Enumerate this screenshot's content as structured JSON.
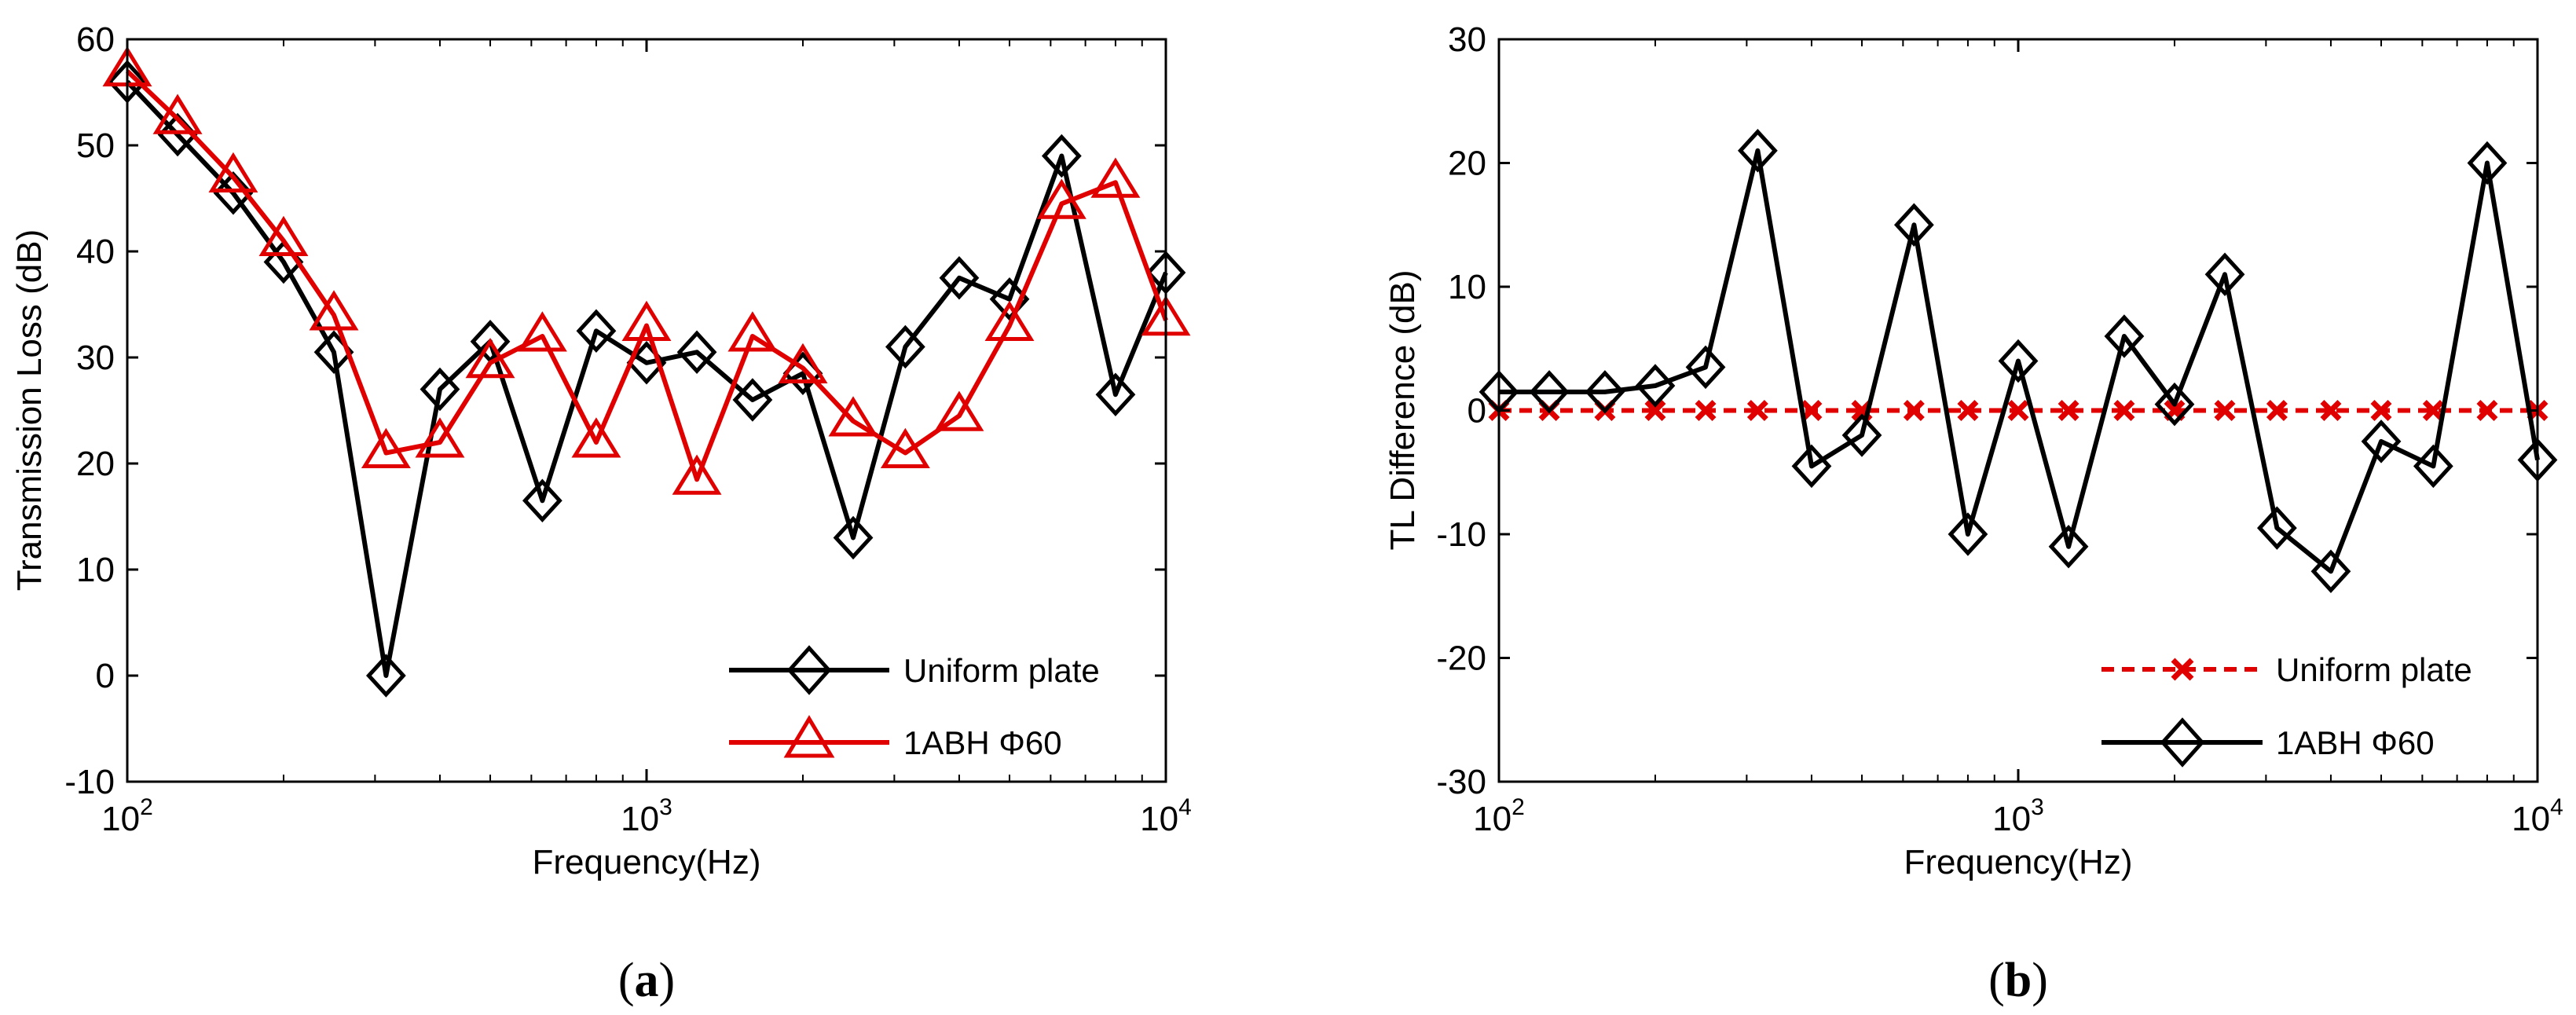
{
  "chart_data": [
    {
      "type": "line",
      "panel": "a",
      "xscale": "log",
      "xlim": [
        100,
        10000
      ],
      "ylim": [
        -10,
        60
      ],
      "xlabel": "Frequency(Hz)",
      "ylabel": "Transmission Loss (dB)",
      "y_ticks": [
        "60",
        "50",
        "40",
        "30",
        "20",
        "10",
        "0",
        "-10"
      ],
      "x_ticks": [
        {
          "base": "10",
          "exp": "2"
        },
        {
          "base": "10",
          "exp": "3"
        },
        {
          "base": "10",
          "exp": "4"
        }
      ],
      "legend_position": "bottom-right",
      "x": [
        100,
        125,
        160,
        200,
        250,
        315,
        400,
        500,
        630,
        800,
        1000,
        1250,
        1600,
        2000,
        2500,
        3150,
        4000,
        5000,
        6300,
        8000,
        10000
      ],
      "series": [
        {
          "name": "Uniform plate",
          "color": "#000000",
          "marker": "diamond",
          "line": "solid",
          "values": [
            56,
            51,
            45.5,
            39,
            30.5,
            0,
            27,
            31.5,
            16.5,
            32.5,
            29.5,
            30.5,
            26,
            28.5,
            13,
            31,
            37.5,
            35.5,
            49,
            26.5,
            38
          ]
        },
        {
          "name": "1ABH Φ60",
          "color": "#e00000",
          "marker": "triangle",
          "line": "solid",
          "values": [
            57,
            52.5,
            47,
            41,
            34,
            21,
            22,
            29.5,
            32,
            22,
            33,
            18.5,
            32,
            29,
            24,
            21,
            24.5,
            33,
            44.5,
            46.5,
            33.5
          ]
        }
      ]
    },
    {
      "type": "line",
      "panel": "b",
      "xscale": "log",
      "xlim": [
        100,
        10000
      ],
      "ylim": [
        -30,
        30
      ],
      "xlabel": "Frequency(Hz)",
      "ylabel": "TL Difference (dB)",
      "y_ticks": [
        "30",
        "20",
        "10",
        "0",
        "-10",
        "-20",
        "-30"
      ],
      "x_ticks": [
        {
          "base": "10",
          "exp": "2"
        },
        {
          "base": "10",
          "exp": "3"
        },
        {
          "base": "10",
          "exp": "4"
        }
      ],
      "legend_position": "bottom-right",
      "x": [
        100,
        125,
        160,
        200,
        250,
        315,
        400,
        500,
        630,
        800,
        1000,
        1250,
        1600,
        2000,
        2500,
        3150,
        4000,
        5000,
        6300,
        8000,
        10000
      ],
      "series": [
        {
          "name": "Uniform plate",
          "color": "#e00000",
          "marker": "x",
          "line": "dashed",
          "values": [
            0,
            0,
            0,
            0,
            0,
            0,
            0,
            0,
            0,
            0,
            0,
            0,
            0,
            0,
            0,
            0,
            0,
            0,
            0,
            0,
            0
          ]
        },
        {
          "name": "1ABH Φ60",
          "color": "#000000",
          "marker": "diamond",
          "line": "solid",
          "values": [
            1.5,
            1.5,
            1.5,
            2,
            3.5,
            21,
            -4.5,
            -2,
            15,
            -10,
            4,
            -11,
            6,
            0.5,
            11,
            -9.5,
            -13,
            -2.5,
            -4.5,
            20,
            -4
          ]
        }
      ]
    }
  ],
  "captions": {
    "a": "a",
    "b": "b"
  }
}
